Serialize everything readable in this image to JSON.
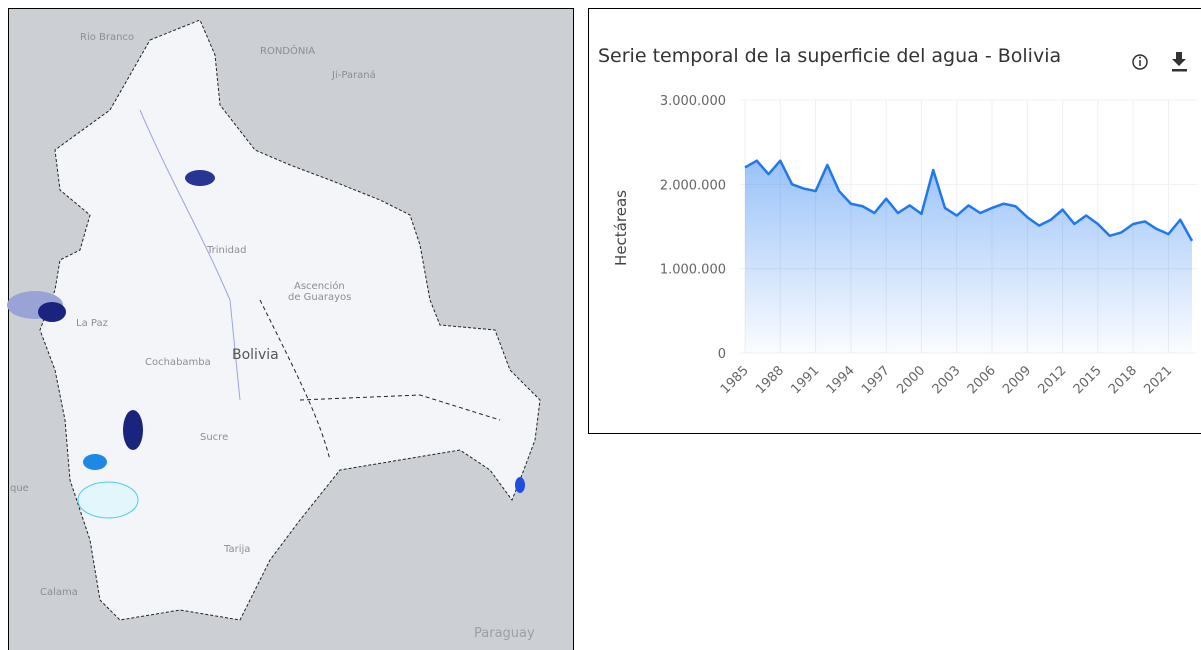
{
  "map": {
    "labels": [
      "Rio Branco",
      "RONDÔNIA",
      "Ji-Paraná",
      "Trinidad",
      "Ascención",
      "de Guarayos",
      "La Paz",
      "Cochabamba",
      "Bolivia",
      "Sucre",
      "Tarija",
      "Calama",
      "Paraguay",
      "que"
    ]
  },
  "chart_data": {
    "type": "line",
    "title": "Serie temporal de la superficie del agua - Bolivia",
    "ylabel": "Hectáreas",
    "color": "#1f78f0",
    "grid": true,
    "x": [
      1985,
      1986,
      1987,
      1988,
      1989,
      1990,
      1991,
      1992,
      1993,
      1994,
      1995,
      1996,
      1997,
      1998,
      1999,
      2000,
      2001,
      2002,
      2003,
      2004,
      2005,
      2006,
      2007,
      2008,
      2009,
      2010,
      2011,
      2012,
      2013,
      2014,
      2015,
      2016,
      2017,
      2018,
      2019,
      2020,
      2021,
      2022,
      2023
    ],
    "series": [
      {
        "name": "Hectáreas",
        "color": "#1f78f0",
        "values": [
          2200000,
          2280000,
          2120000,
          2280000,
          2000000,
          1950000,
          1920000,
          2230000,
          1920000,
          1770000,
          1740000,
          1660000,
          1830000,
          1660000,
          1750000,
          1650000,
          2170000,
          1720000,
          1630000,
          1750000,
          1660000,
          1720000,
          1770000,
          1740000,
          1610000,
          1510000,
          1580000,
          1700000,
          1530000,
          1630000,
          1530000,
          1390000,
          1430000,
          1530000,
          1560000,
          1470000,
          1410000,
          1580000,
          1330000
        ]
      }
    ],
    "xlim": [
      1985,
      2023
    ],
    "xticks": [
      1985,
      1988,
      1991,
      1994,
      1997,
      2000,
      2003,
      2006,
      2009,
      2012,
      2015,
      2018,
      2021
    ],
    "ylim": [
      0,
      3000000
    ],
    "yticks": [
      0,
      {
        "value": 1000000,
        "label": "1.000.000"
      },
      {
        "value": 2000000,
        "label": "2.000.000"
      },
      {
        "value": 3000000,
        "label": "3.000.000"
      }
    ]
  }
}
